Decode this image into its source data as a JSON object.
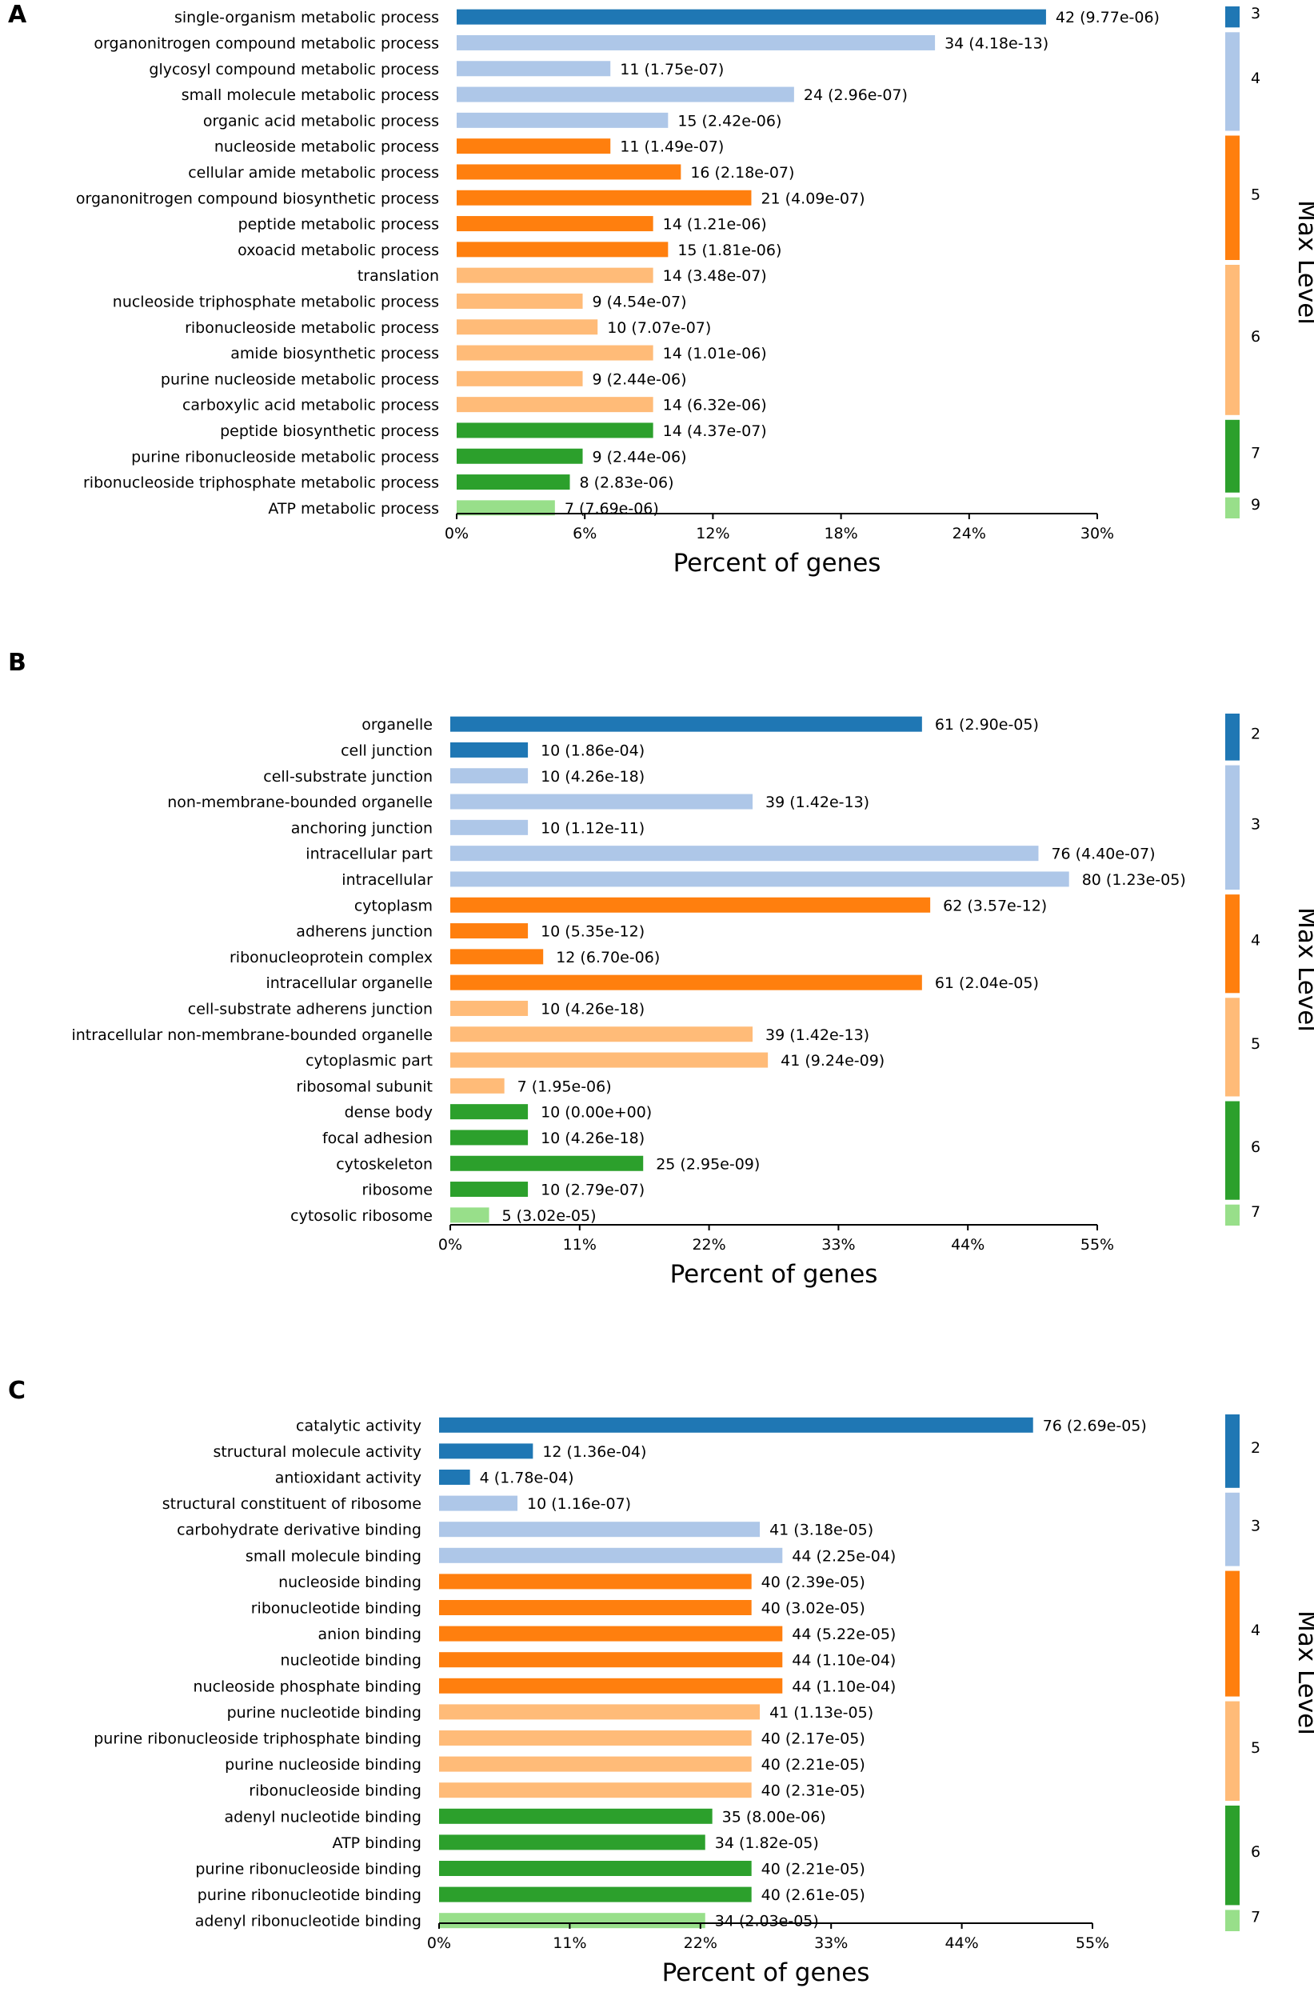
{
  "colors": {
    "level_a": "#1f77b4",
    "level_b": "#aec7e8",
    "level_c": "#ff7f0e",
    "level_d": "#ffbb78",
    "level_e": "#2ca02c",
    "level_f": "#98df8a",
    "axis": "#000000",
    "text": "#000000"
  },
  "chart_data": [
    {
      "panel_label": "A",
      "type": "bar",
      "orientation": "horizontal",
      "xlabel": "Percent of genes",
      "legend_title": "Max Level",
      "xlim": [
        0,
        30
      ],
      "xticks": [
        "0%",
        "6%",
        "12%",
        "18%",
        "24%",
        "30%"
      ],
      "categories": [
        "single-organism metabolic process",
        "organonitrogen compound metabolic process",
        "glycosyl compound metabolic process",
        "small molecule metabolic process",
        "organic acid metabolic process",
        "nucleoside metabolic process",
        "cellular amide metabolic process",
        "organonitrogen compound biosynthetic process",
        "peptide metabolic process",
        "oxoacid metabolic process",
        "translation",
        "nucleoside triphosphate metabolic process",
        "ribonucleoside metabolic process",
        "amide biosynthetic process",
        "purine nucleoside metabolic process",
        "carboxylic acid metabolic process",
        "peptide biosynthetic process",
        "purine ribonucleoside metabolic process",
        "ribonucleoside triphosphate metabolic process",
        "ATP metabolic process"
      ],
      "percent": [
        27.6,
        22.4,
        7.2,
        15.8,
        9.9,
        7.2,
        10.5,
        13.8,
        9.2,
        9.9,
        9.2,
        5.9,
        6.6,
        9.2,
        5.9,
        9.2,
        9.2,
        5.9,
        5.3,
        4.6
      ],
      "data_labels": [
        "42 (9.77e-06)",
        "34 (4.18e-13)",
        "11 (1.75e-07)",
        "24 (2.96e-07)",
        "15 (2.42e-06)",
        "11 (1.49e-07)",
        "16 (2.18e-07)",
        "21 (4.09e-07)",
        "14 (1.21e-06)",
        "15 (1.81e-06)",
        "14 (3.48e-07)",
        "9 (4.54e-07)",
        "10 (7.07e-07)",
        "14 (1.01e-06)",
        "9 (2.44e-06)",
        "14 (6.32e-06)",
        "14 (4.37e-07)",
        "9 (2.44e-06)",
        "8 (2.83e-06)",
        "7 (7.69e-06)"
      ],
      "bar_levels": [
        "3",
        "4",
        "4",
        "4",
        "4",
        "5",
        "5",
        "5",
        "5",
        "5",
        "6",
        "6",
        "6",
        "6",
        "6",
        "6",
        "7",
        "7",
        "7",
        "9"
      ],
      "legend": [
        {
          "level": "3",
          "count": 1,
          "color_key": "level_a"
        },
        {
          "level": "4",
          "count": 4,
          "color_key": "level_b"
        },
        {
          "level": "5",
          "count": 5,
          "color_key": "level_c"
        },
        {
          "level": "6",
          "count": 6,
          "color_key": "level_d"
        },
        {
          "level": "7",
          "count": 3,
          "color_key": "level_e"
        },
        {
          "level": "9",
          "count": 1,
          "color_key": "level_f"
        }
      ]
    },
    {
      "panel_label": "B",
      "type": "bar",
      "orientation": "horizontal",
      "xlabel": "Percent of genes",
      "legend_title": "Max Level",
      "xlim": [
        0,
        55
      ],
      "xticks": [
        "0%",
        "11%",
        "22%",
        "33%",
        "44%",
        "55%"
      ],
      "categories": [
        "organelle",
        "cell junction",
        "cell-substrate junction",
        "non-membrane-bounded organelle",
        "anchoring junction",
        "intracellular part",
        "intracellular",
        "cytoplasm",
        "adherens junction",
        "ribonucleoprotein complex",
        "intracellular organelle",
        "cell-substrate adherens junction",
        "intracellular non-membrane-bounded organelle",
        "cytoplasmic part",
        "ribosomal subunit",
        "dense body",
        "focal adhesion",
        "cytoskeleton",
        "ribosome",
        "cytosolic ribosome"
      ],
      "percent": [
        40.1,
        6.6,
        6.6,
        25.7,
        6.6,
        50.0,
        52.6,
        40.8,
        6.6,
        7.9,
        40.1,
        6.6,
        25.7,
        27.0,
        4.6,
        6.6,
        6.6,
        16.4,
        6.6,
        3.3
      ],
      "data_labels": [
        "61 (2.90e-05)",
        "10 (1.86e-04)",
        "10 (4.26e-18)",
        "39 (1.42e-13)",
        "10 (1.12e-11)",
        "76 (4.40e-07)",
        "80 (1.23e-05)",
        "62 (3.57e-12)",
        "10 (5.35e-12)",
        "12 (6.70e-06)",
        "61 (2.04e-05)",
        "10 (4.26e-18)",
        "39 (1.42e-13)",
        "41 (9.24e-09)",
        "7 (1.95e-06)",
        "10 (0.00e+00)",
        "10 (4.26e-18)",
        "25 (2.95e-09)",
        "10 (2.79e-07)",
        "5 (3.02e-05)"
      ],
      "bar_levels": [
        "2",
        "2",
        "3",
        "3",
        "3",
        "3",
        "3",
        "4",
        "4",
        "4",
        "4",
        "5",
        "5",
        "5",
        "5",
        "6",
        "6",
        "6",
        "6",
        "7"
      ],
      "legend": [
        {
          "level": "2",
          "count": 2,
          "color_key": "level_a"
        },
        {
          "level": "3",
          "count": 5,
          "color_key": "level_b"
        },
        {
          "level": "4",
          "count": 4,
          "color_key": "level_c"
        },
        {
          "level": "5",
          "count": 4,
          "color_key": "level_d"
        },
        {
          "level": "6",
          "count": 4,
          "color_key": "level_e"
        },
        {
          "level": "7",
          "count": 1,
          "color_key": "level_f"
        }
      ]
    },
    {
      "panel_label": "C",
      "type": "bar",
      "orientation": "horizontal",
      "xlabel": "Percent of genes",
      "legend_title": "Max Level",
      "xlim": [
        0,
        55
      ],
      "xticks": [
        "0%",
        "11%",
        "22%",
        "33%",
        "44%",
        "55%"
      ],
      "categories": [
        "catalytic activity",
        "structural molecule activity",
        "antioxidant activity",
        "structural constituent of ribosome",
        "carbohydrate derivative binding",
        "small molecule binding",
        "nucleoside binding",
        "ribonucleotide binding",
        "anion binding",
        "nucleotide binding",
        "nucleoside phosphate binding",
        "purine nucleotide binding",
        "purine ribonucleoside triphosphate binding",
        "purine nucleoside binding",
        "ribonucleoside binding",
        "adenyl nucleotide binding",
        "ATP binding",
        "purine ribonucleoside binding",
        "purine ribonucleotide binding",
        "adenyl ribonucleotide binding"
      ],
      "percent": [
        50.0,
        7.9,
        2.6,
        6.6,
        27.0,
        28.9,
        26.3,
        26.3,
        28.9,
        28.9,
        28.9,
        27.0,
        26.3,
        26.3,
        26.3,
        23.0,
        22.4,
        26.3,
        26.3,
        22.4
      ],
      "data_labels": [
        "76 (2.69e-05)",
        "12 (1.36e-04)",
        "4 (1.78e-04)",
        "10 (1.16e-07)",
        "41 (3.18e-05)",
        "44 (2.25e-04)",
        "40 (2.39e-05)",
        "40 (3.02e-05)",
        "44 (5.22e-05)",
        "44 (1.10e-04)",
        "44 (1.10e-04)",
        "41 (1.13e-05)",
        "40 (2.17e-05)",
        "40 (2.21e-05)",
        "40 (2.31e-05)",
        "35 (8.00e-06)",
        "34 (1.82e-05)",
        "40 (2.21e-05)",
        "40 (2.61e-05)",
        "34 (2.03e-05)"
      ],
      "bar_levels": [
        "2",
        "2",
        "2",
        "3",
        "3",
        "3",
        "4",
        "4",
        "4",
        "4",
        "4",
        "5",
        "5",
        "5",
        "5",
        "6",
        "6",
        "6",
        "6",
        "7"
      ],
      "legend": [
        {
          "level": "2",
          "count": 3,
          "color_key": "level_a"
        },
        {
          "level": "3",
          "count": 3,
          "color_key": "level_b"
        },
        {
          "level": "4",
          "count": 5,
          "color_key": "level_c"
        },
        {
          "level": "5",
          "count": 4,
          "color_key": "level_d"
        },
        {
          "level": "6",
          "count": 4,
          "color_key": "level_e"
        },
        {
          "level": "7",
          "count": 1,
          "color_key": "level_f"
        }
      ]
    }
  ]
}
